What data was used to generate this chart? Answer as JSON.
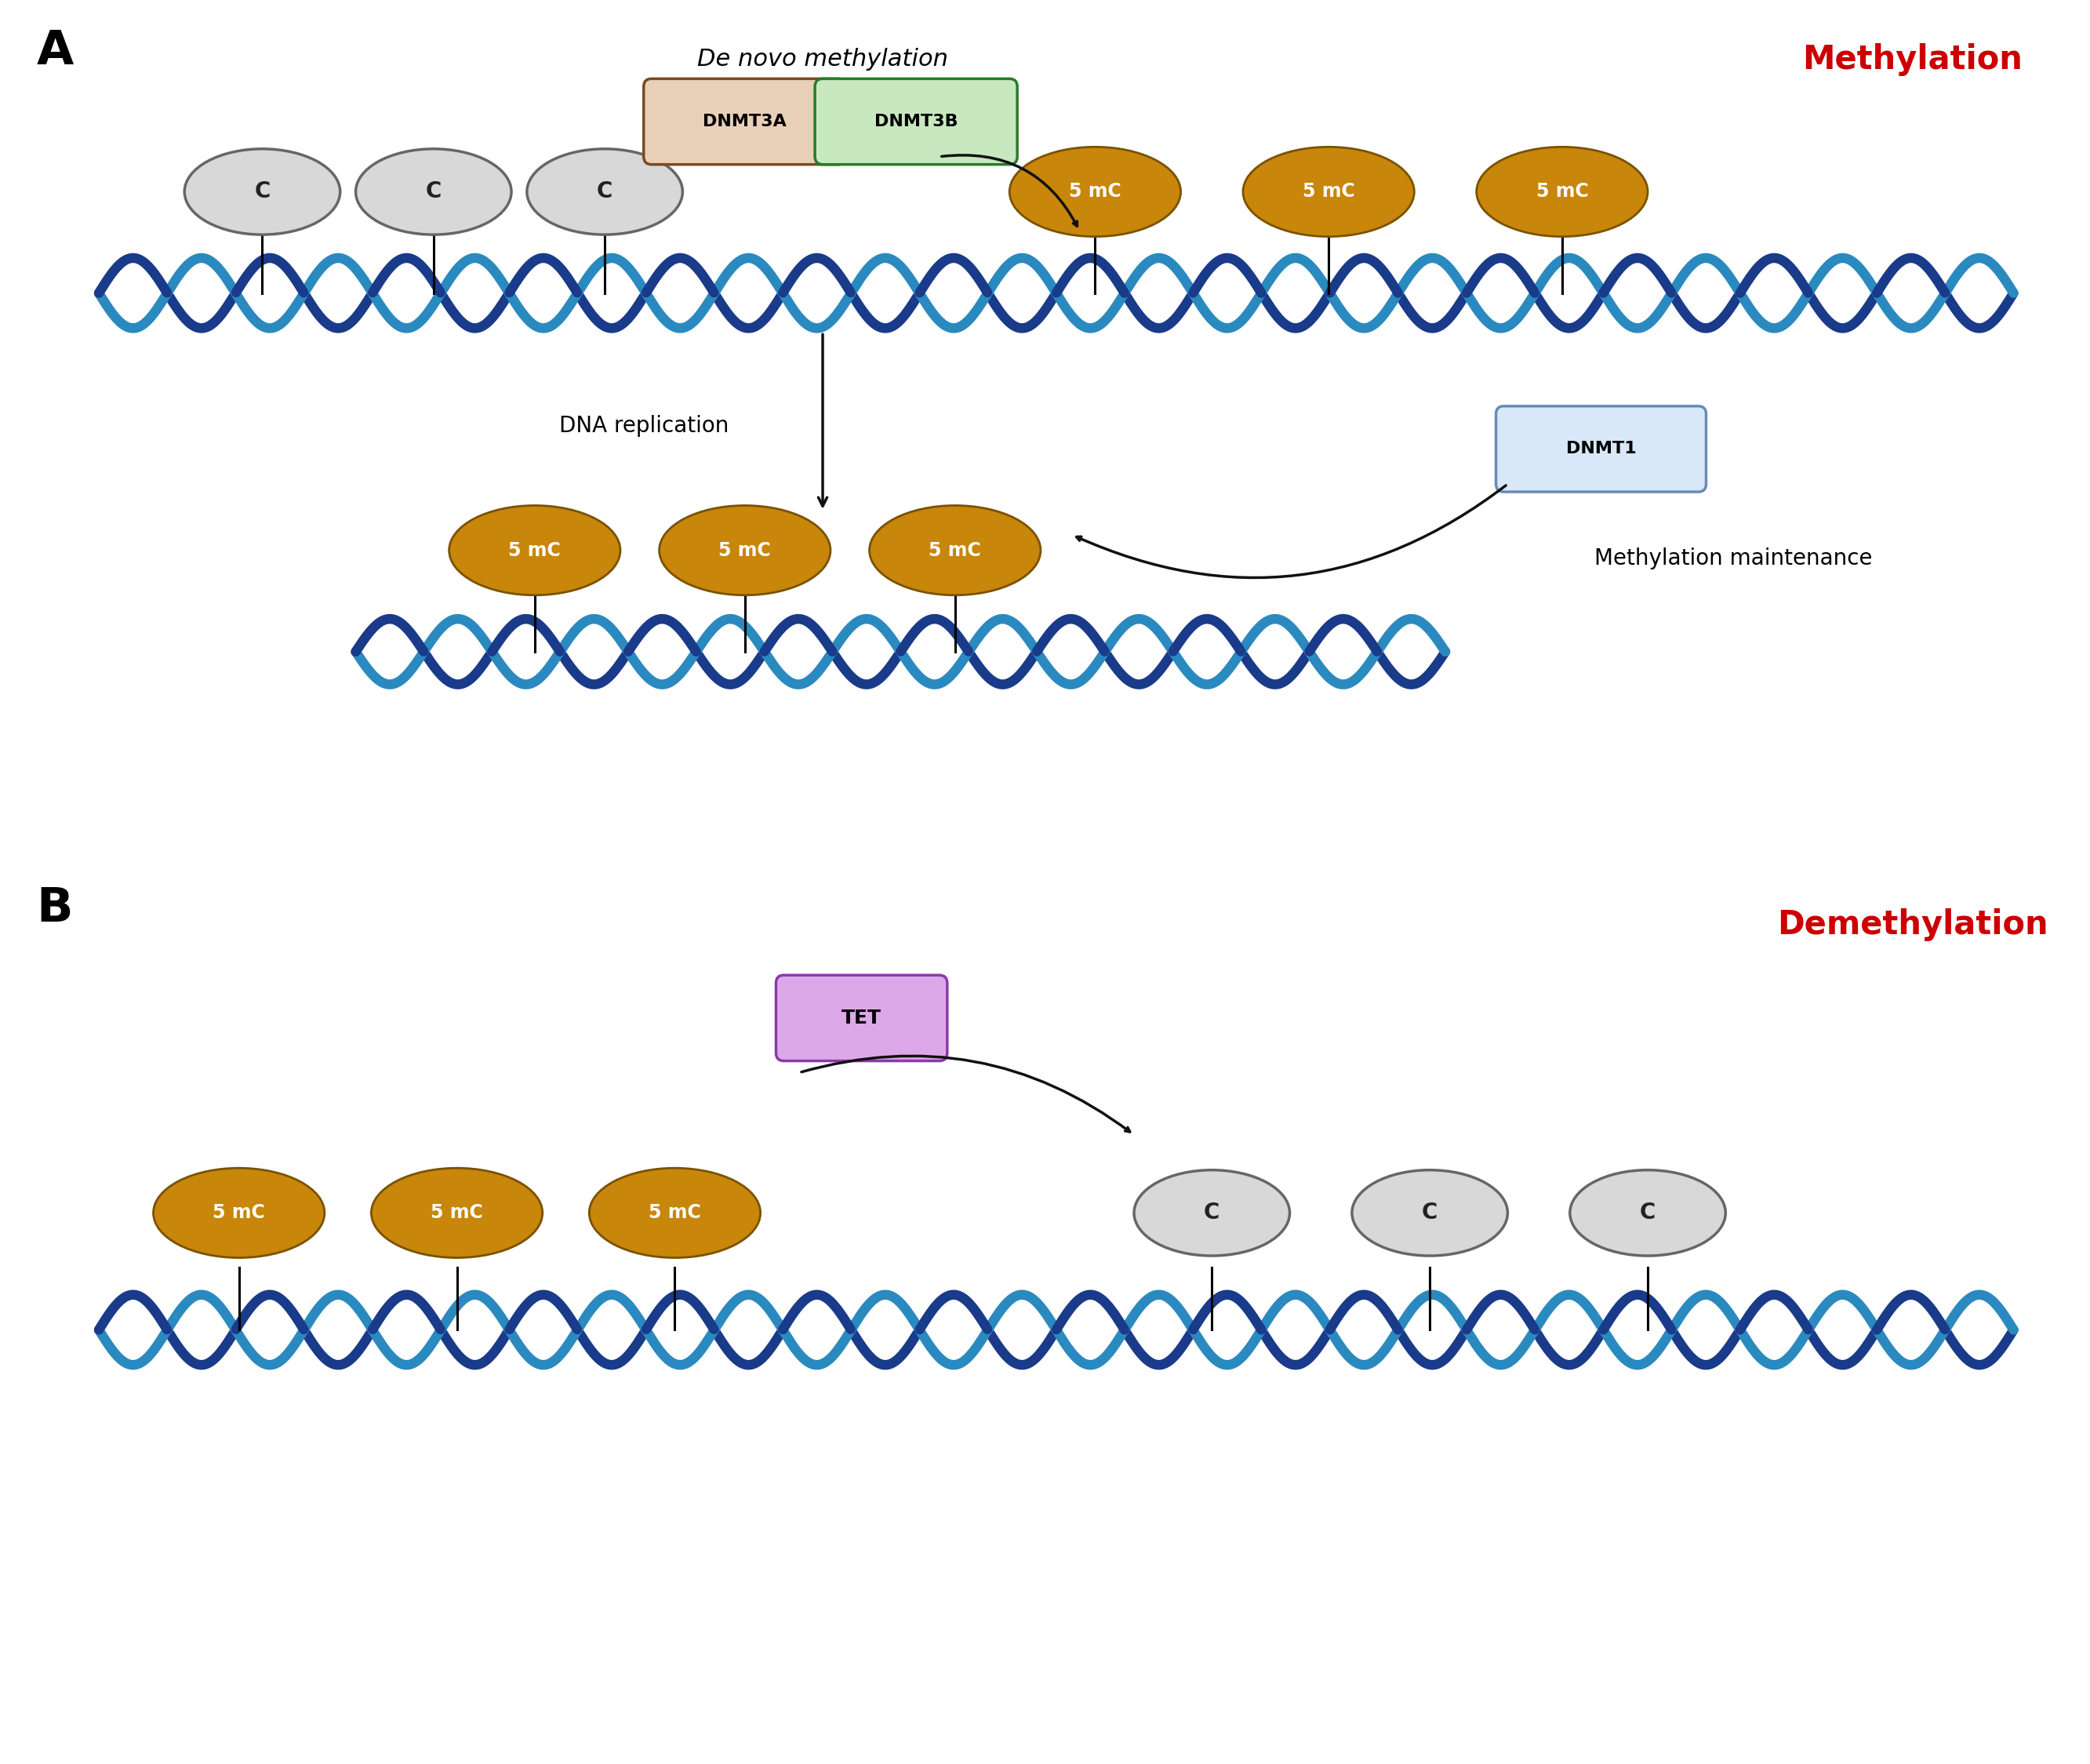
{
  "bg_color": "#ffffff",
  "dna_color1": "#1a3a8a",
  "dna_color2": "#2a8abf",
  "c_ellipse_color": "#d8d8d8",
  "c_ellipse_edge": "#666666",
  "mc_ellipse_color": "#c8860a",
  "mc_ellipse_edge": "#7a5200",
  "mc_text_color": "#ffffff",
  "c_text_color": "#222222",
  "dnmt3a_fill": "#e8d0b8",
  "dnmt3a_edge": "#7a4a20",
  "dnmt3b_fill": "#c8e8c0",
  "dnmt3b_edge": "#2a7a2a",
  "dnmt1_fill": "#d8e8f8",
  "dnmt1_edge": "#6a8ab8",
  "tet_fill": "#dda8e8",
  "tet_edge": "#8a3aaa",
  "arrow_color": "#111111",
  "label_A": "A",
  "label_B": "B",
  "denovo_label": "De novo methylation",
  "methylation_label": "Methylation",
  "demethylation_label": "Demethylation",
  "dna_replication_label": "DNA replication",
  "methylation_maintenance_label": "Methylation maintenance",
  "dnmt3a_label": "DNMT3A",
  "dnmt3b_label": "DNMT3B",
  "dnmt1_label": "DNMT1",
  "tet_label": "TET"
}
